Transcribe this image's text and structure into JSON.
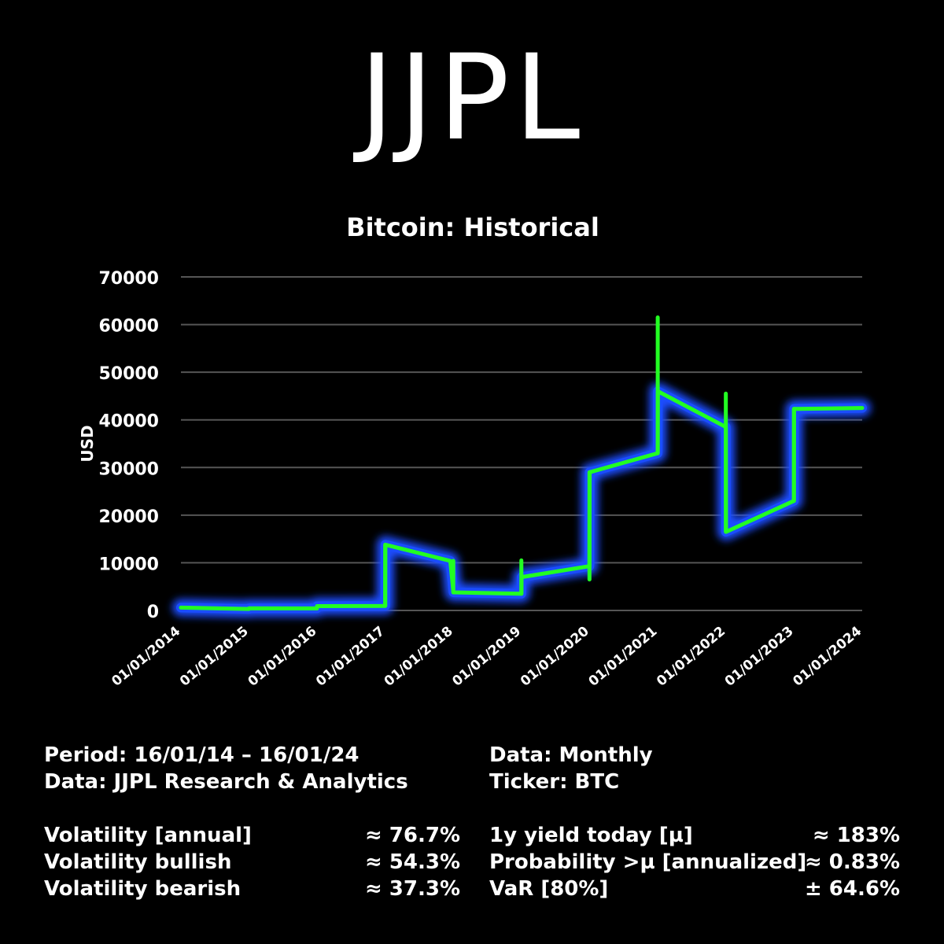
{
  "brand": "JJPL",
  "chart_data": {
    "type": "line",
    "title": "Bitcoin: Historical",
    "xlabel": "",
    "ylabel": "USD",
    "x_tick_labels": [
      "01/01/2014",
      "01/01/2015",
      "01/01/2016",
      "01/01/2017",
      "01/01/2018",
      "01/01/2019",
      "01/01/2020",
      "01/01/2021",
      "01/01/2022",
      "01/01/2023",
      "01/01/2024"
    ],
    "y_ticks": [
      0,
      10000,
      20000,
      30000,
      40000,
      50000,
      60000,
      70000
    ],
    "ylim": [
      0,
      70000
    ],
    "xlim": [
      "2014-01-01",
      "2024-01-01"
    ],
    "grid": "horizontal",
    "series": [
      {
        "points": [
          [
            "2014-01-01",
            600
          ],
          [
            "2014-12-31",
            320
          ],
          [
            "2015-01-01",
            450
          ],
          [
            "2015-12-31",
            430
          ],
          [
            "2016-01-01",
            900
          ],
          [
            "2016-12-31",
            950
          ],
          [
            "2017-01-01",
            13800
          ],
          [
            "2017-12-15",
            10400
          ],
          [
            "2018-01-01",
            3800
          ],
          [
            "2018-12-31",
            3500
          ],
          [
            "2019-01-01",
            7000
          ],
          [
            "2019-12-31",
            9300
          ],
          [
            "2020-01-01",
            29000
          ],
          [
            "2020-12-31",
            33000
          ],
          [
            "2021-01-01",
            46000
          ],
          [
            "2021-12-31",
            38500
          ],
          [
            "2022-01-01",
            16500
          ],
          [
            "2022-12-31",
            23000
          ],
          [
            "2023-01-01",
            42300
          ],
          [
            "2024-01-01",
            42500
          ]
        ],
        "spikes": [
          [
            "2016-12-31",
            950,
            13800
          ],
          [
            "2017-12-31",
            3800,
            10400
          ],
          [
            "2018-12-31",
            3500,
            10500
          ],
          [
            "2019-12-31",
            6500,
            29000
          ],
          [
            "2020-12-31",
            33000,
            61500
          ],
          [
            "2021-12-31",
            16500,
            45500
          ],
          [
            "2022-12-31",
            23000,
            42300
          ]
        ]
      }
    ],
    "colors": {
      "line": "#22ff22",
      "glow": "#1a4dff",
      "grid": "#555555",
      "text": "#ffffff",
      "background": "#000000"
    }
  },
  "stats": {
    "left_top": [
      "Period: 16/01/14 – 16/01/24",
      "Data: JJPL Research & Analytics"
    ],
    "right_top": [
      "Data: Monthly",
      "Ticker: BTC"
    ],
    "left_metrics": [
      {
        "label": "Volatility [annual]",
        "value": "≈ 76.7%"
      },
      {
        "label": "Volatility bullish",
        "value": "≈ 54.3%"
      },
      {
        "label": "Volatility bearish",
        "value": "≈ 37.3%"
      }
    ],
    "right_metrics": [
      {
        "label": "1y yield today [µ]",
        "value": "≈ 183%"
      },
      {
        "label": "Probability >µ [annualized]",
        "value": "≈ 0.83%"
      },
      {
        "label": "VaR [80%]",
        "value": "± 64.6%"
      }
    ]
  }
}
